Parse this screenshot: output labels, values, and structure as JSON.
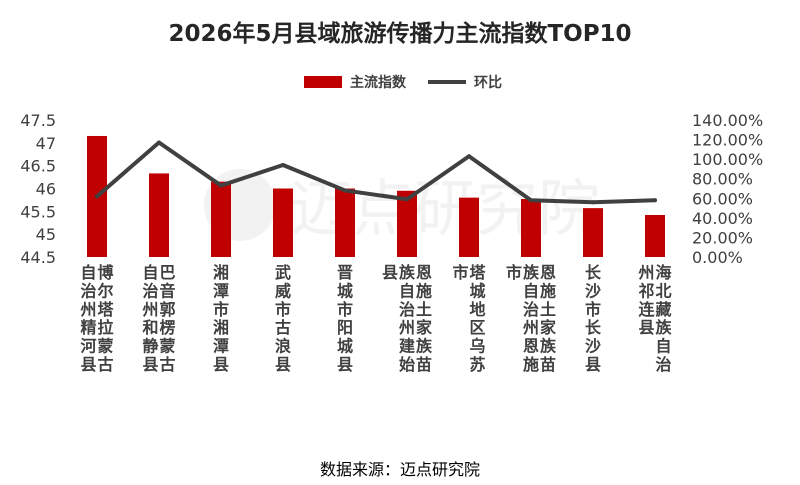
{
  "title": "2026年5月县域旅游传播力主流指数TOP10",
  "source": "数据来源：迈点研究院",
  "watermark": "迈点研究院",
  "colors": {
    "bar": "#c00000",
    "line": "#404040",
    "text": "#404040"
  },
  "chart_data": {
    "type": "bar",
    "categories": [
      "博尔塔拉蒙古自治州精河县",
      "巴音郭楞蒙古自治州和静县",
      "湘潭市湘潭县",
      "武威市古浪县",
      "晋城市阳城县",
      "恩施土家族苗族自治州建始县",
      "塔城地区乌苏市",
      "恩施土家族苗族自治州恩施市",
      "长沙市长沙县",
      "海北藏族自治州祁连县"
    ],
    "series": [
      {
        "name": "主流指数",
        "type": "bar",
        "axis": "left",
        "values": [
          47.15,
          46.33,
          46.15,
          46.0,
          46.0,
          45.95,
          45.8,
          45.77,
          45.57,
          45.42
        ]
      },
      {
        "name": "环比",
        "type": "line",
        "axis": "right",
        "values": [
          62,
          117,
          73,
          94,
          68,
          59,
          103,
          58,
          56,
          58
        ]
      }
    ],
    "y_left": {
      "min": 44.5,
      "max": 47.5,
      "ticks": [
        "44.5",
        "45",
        "45.5",
        "46",
        "46.5",
        "47",
        "47.5"
      ]
    },
    "y_right": {
      "min": 0,
      "max": 140,
      "ticks": [
        "0.00%",
        "20.00%",
        "40.00%",
        "60.00%",
        "80.00%",
        "100.00%",
        "120.00%",
        "140.00%"
      ]
    },
    "legend": "top-center",
    "grid": false
  }
}
